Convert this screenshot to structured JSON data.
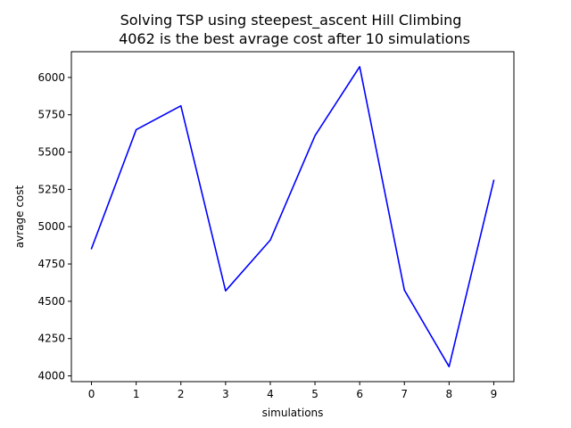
{
  "chart_data": {
    "type": "line",
    "title_line1": "Solving TSP using steepest_ascent Hill Climbing",
    "title_line2": "4062 is the best avrage cost after 10 simulations",
    "xlabel": "simulations",
    "ylabel": "avrage cost",
    "x": [
      0,
      1,
      2,
      3,
      4,
      5,
      6,
      7,
      8,
      9
    ],
    "series": [
      {
        "values": [
          4853,
          5650,
          5810,
          4570,
          4910,
          5610,
          6072,
          4575,
          4062,
          5310
        ],
        "color": "#0000ff"
      }
    ],
    "x_ticks": [
      "0",
      "1",
      "2",
      "3",
      "4",
      "5",
      "6",
      "7",
      "8",
      "9"
    ],
    "y_ticks": [
      "4000",
      "4250",
      "4500",
      "4750",
      "5000",
      "5250",
      "5500",
      "5750",
      "6000"
    ],
    "xlim": [
      -0.45,
      9.45
    ],
    "ylim": [
      3961.5,
      6172.5
    ],
    "grid": false
  }
}
